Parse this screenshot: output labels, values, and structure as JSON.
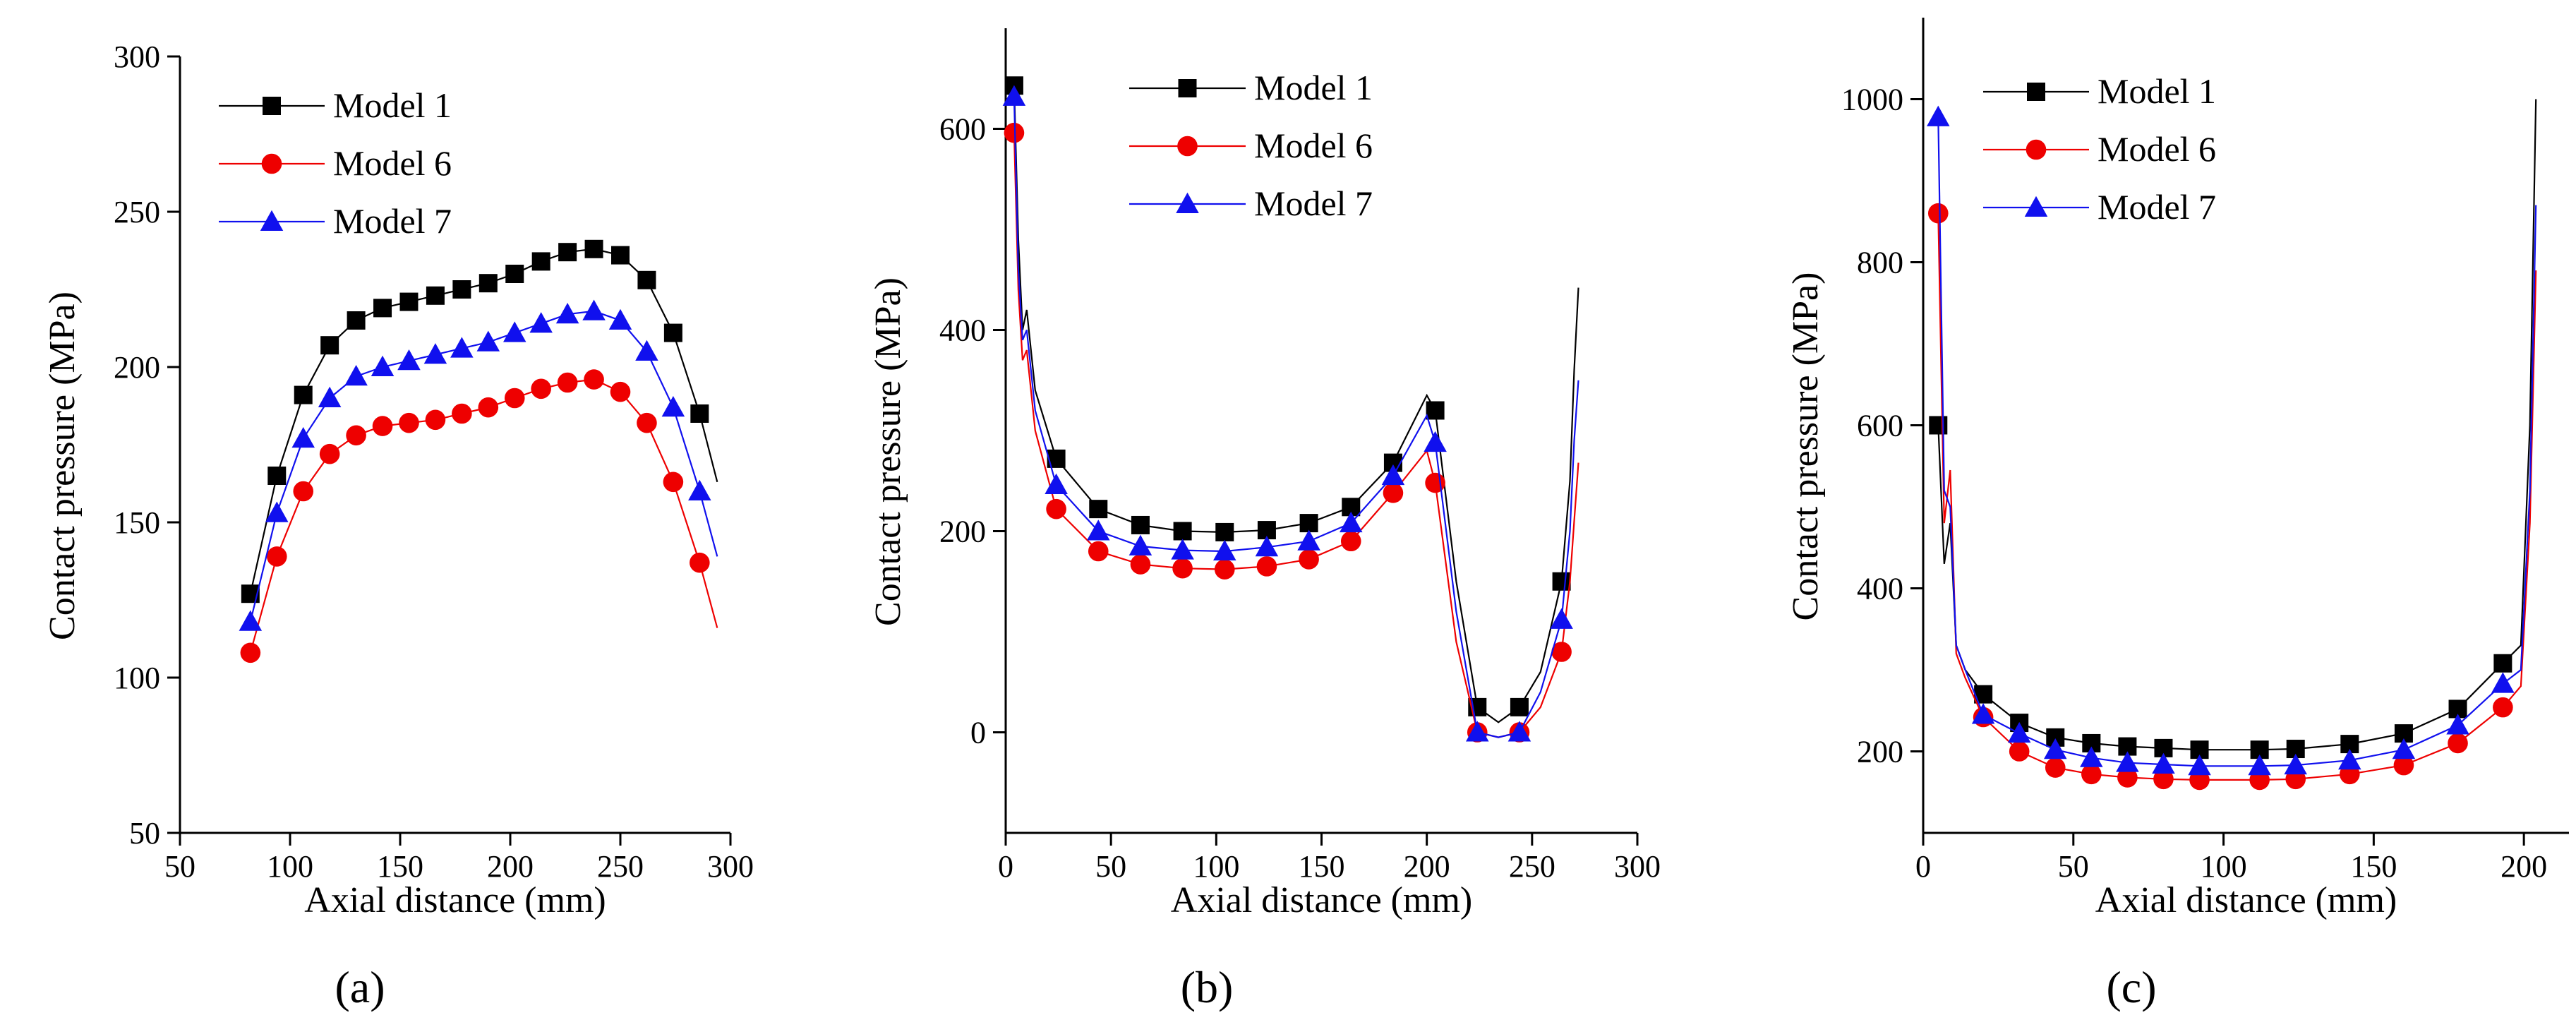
{
  "chart_data": [
    {
      "type": "line",
      "panel_label": "a",
      "panel_label_display": "(a)",
      "xlabel": "Axial distance (mm)",
      "ylabel": "Contact pressure (MPa)",
      "xlim": [
        50,
        300
      ],
      "ylim": [
        50,
        300
      ],
      "xticks": [
        50,
        100,
        150,
        200,
        250,
        300
      ],
      "yticks": [
        50,
        100,
        150,
        200,
        250,
        300
      ],
      "legend_position": "top-left",
      "series": [
        {
          "name": "Model 1",
          "color": "#000000",
          "marker": "square",
          "x": [
            82,
            94,
            106,
            118,
            130,
            142,
            154,
            166,
            178,
            190,
            202,
            214,
            226,
            238,
            250,
            262,
            274,
            286,
            294
          ],
          "values": [
            127,
            165,
            191,
            207,
            215,
            219,
            221,
            223,
            225,
            227,
            230,
            234,
            237,
            238,
            236,
            228,
            211,
            185,
            163
          ],
          "marker_count": 18
        },
        {
          "name": "Model 6",
          "color": "#ee0000",
          "marker": "circle",
          "x": [
            82,
            94,
            106,
            118,
            130,
            142,
            154,
            166,
            178,
            190,
            202,
            214,
            226,
            238,
            250,
            262,
            274,
            286,
            294
          ],
          "values": [
            108,
            139,
            160,
            172,
            178,
            181,
            182,
            183,
            185,
            187,
            190,
            193,
            195,
            196,
            192,
            182,
            163,
            137,
            116
          ],
          "marker_count": 18
        },
        {
          "name": "Model 7",
          "color": "#1010ee",
          "marker": "triangle",
          "x": [
            82,
            94,
            106,
            118,
            130,
            142,
            154,
            166,
            178,
            190,
            202,
            214,
            226,
            238,
            250,
            262,
            274,
            286,
            294
          ],
          "values": [
            118,
            153,
            177,
            190,
            197,
            200,
            202,
            204,
            206,
            208,
            211,
            214,
            217,
            218,
            215,
            205,
            187,
            160,
            139
          ],
          "marker_count": 18
        }
      ]
    },
    {
      "type": "line",
      "panel_label": "b",
      "panel_label_display": "(b)",
      "xlabel": "Axial distance (mm)",
      "ylabel": "Contact pressure (MPa)",
      "xlim": [
        0,
        300
      ],
      "ylim": [
        -100,
        700
      ],
      "xticks": [
        0,
        50,
        100,
        150,
        200,
        250,
        300
      ],
      "yticks": [
        0,
        200,
        400,
        600
      ],
      "legend_position": "top-center",
      "series": [
        {
          "name": "Model 1",
          "color": "#000000",
          "marker": "square",
          "x": [
            4,
            6,
            8,
            10,
            14,
            24,
            44,
            64,
            84,
            104,
            124,
            144,
            164,
            184,
            200,
            204,
            214,
            224,
            234,
            244,
            254,
            264,
            268,
            270,
            272
          ],
          "values": [
            643,
            490,
            400,
            420,
            340,
            272,
            222,
            206,
            200,
            199,
            201,
            208,
            224,
            268,
            335,
            320,
            150,
            25,
            10,
            25,
            60,
            150,
            250,
            360,
            442
          ],
          "markers_x": [
            4,
            24,
            44,
            64,
            84,
            104,
            124,
            144,
            164,
            184,
            204,
            224,
            244,
            264
          ],
          "markers_y": [
            643,
            272,
            222,
            206,
            200,
            199,
            201,
            208,
            224,
            268,
            320,
            25,
            25,
            150
          ]
        },
        {
          "name": "Model 6",
          "color": "#ee0000",
          "marker": "circle",
          "x": [
            4,
            6,
            8,
            10,
            14,
            24,
            44,
            64,
            84,
            104,
            124,
            144,
            164,
            184,
            200,
            204,
            214,
            224,
            234,
            244,
            254,
            264,
            268,
            270,
            272
          ],
          "values": [
            596,
            440,
            370,
            380,
            300,
            222,
            180,
            167,
            163,
            162,
            165,
            172,
            190,
            238,
            280,
            248,
            90,
            0,
            -5,
            0,
            25,
            80,
            150,
            210,
            268
          ],
          "markers_x": [
            4,
            24,
            44,
            64,
            84,
            104,
            124,
            144,
            164,
            184,
            204,
            224,
            244,
            264
          ],
          "markers_y": [
            596,
            222,
            180,
            167,
            163,
            162,
            165,
            172,
            190,
            238,
            248,
            0,
            0,
            80
          ]
        },
        {
          "name": "Model 7",
          "color": "#1010ee",
          "marker": "triangle",
          "x": [
            4,
            6,
            8,
            10,
            14,
            24,
            44,
            64,
            84,
            104,
            124,
            144,
            164,
            184,
            200,
            204,
            214,
            224,
            234,
            244,
            254,
            264,
            268,
            270,
            272
          ],
          "values": [
            632,
            460,
            390,
            400,
            320,
            246,
            200,
            185,
            181,
            180,
            184,
            190,
            208,
            255,
            315,
            288,
            120,
            0,
            -5,
            0,
            40,
            112,
            200,
            290,
            350
          ],
          "markers_x": [
            4,
            24,
            44,
            64,
            84,
            104,
            124,
            144,
            164,
            184,
            204,
            224,
            244,
            264
          ],
          "markers_y": [
            632,
            246,
            200,
            185,
            181,
            180,
            184,
            190,
            208,
            255,
            288,
            0,
            0,
            112
          ]
        }
      ]
    },
    {
      "type": "line",
      "panel_label": "c",
      "panel_label_display": "(c)",
      "xlabel": "Axial distance (mm)",
      "ylabel": "Contact pressure (MPa)",
      "xlim": [
        0,
        215
      ],
      "ylim": [
        100,
        1100
      ],
      "xticks": [
        0,
        50,
        100,
        150,
        200
      ],
      "yticks": [
        200,
        400,
        600,
        800,
        1000
      ],
      "legend_position": "top-center",
      "series": [
        {
          "name": "Model 1",
          "color": "#000000",
          "marker": "square",
          "x": [
            5,
            7,
            9,
            11,
            14,
            20,
            32,
            44,
            56,
            68,
            80,
            92,
            112,
            124,
            142,
            160,
            178,
            193,
            199,
            202,
            204
          ],
          "values": [
            600,
            430,
            480,
            330,
            300,
            270,
            235,
            217,
            210,
            206,
            204,
            202,
            202,
            203,
            209,
            222,
            252,
            308,
            330,
            600,
            1000
          ],
          "markers_x": [
            5,
            20,
            32,
            44,
            56,
            68,
            80,
            92,
            112,
            124,
            142,
            160,
            178,
            193
          ],
          "markers_y": [
            600,
            270,
            235,
            217,
            210,
            206,
            204,
            202,
            202,
            203,
            209,
            222,
            252,
            308
          ]
        },
        {
          "name": "Model 6",
          "color": "#ee0000",
          "marker": "circle",
          "x": [
            5,
            7,
            9,
            11,
            14,
            20,
            32,
            44,
            56,
            68,
            80,
            92,
            112,
            124,
            142,
            160,
            178,
            193,
            199,
            202,
            204
          ],
          "values": [
            860,
            480,
            545,
            320,
            290,
            242,
            200,
            180,
            172,
            168,
            166,
            165,
            165,
            166,
            172,
            183,
            210,
            254,
            280,
            480,
            790
          ],
          "markers_x": [
            5,
            20,
            32,
            44,
            56,
            68,
            80,
            92,
            112,
            124,
            142,
            160,
            178,
            193
          ],
          "markers_y": [
            860,
            242,
            200,
            180,
            172,
            168,
            166,
            165,
            165,
            166,
            172,
            183,
            210,
            254
          ]
        },
        {
          "name": "Model 7",
          "color": "#1010ee",
          "marker": "triangle",
          "x": [
            5,
            7,
            9,
            11,
            14,
            20,
            32,
            44,
            56,
            68,
            80,
            92,
            112,
            124,
            142,
            160,
            178,
            193,
            199,
            202,
            204
          ],
          "values": [
            978,
            520,
            500,
            330,
            300,
            245,
            222,
            202,
            192,
            186,
            184,
            182,
            182,
            183,
            189,
            202,
            232,
            283,
            300,
            520,
            870
          ],
          "markers_x": [
            5,
            20,
            32,
            44,
            56,
            68,
            80,
            92,
            112,
            124,
            142,
            160,
            178,
            193
          ],
          "markers_y": [
            978,
            245,
            222,
            202,
            192,
            186,
            184,
            182,
            182,
            183,
            189,
            202,
            232,
            283
          ]
        }
      ]
    }
  ]
}
